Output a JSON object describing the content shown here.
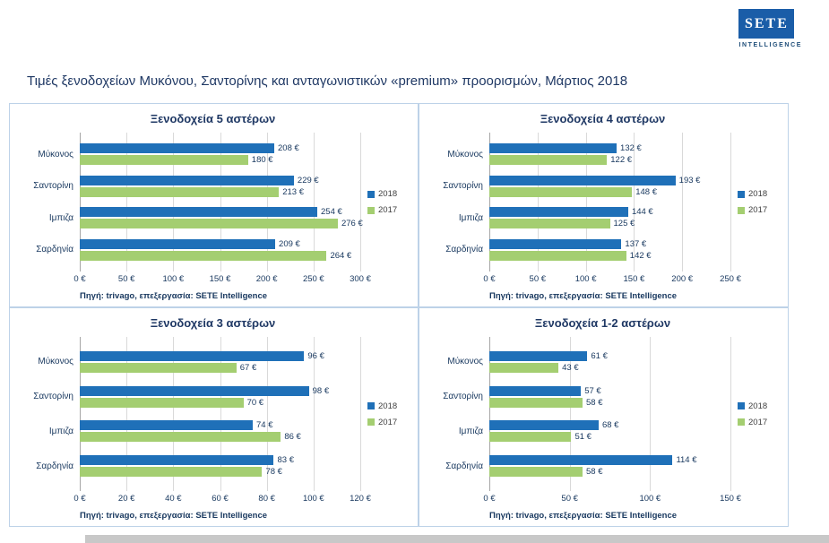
{
  "logo": {
    "text": "SETE",
    "subtext": "INTELLIGENCE"
  },
  "page_title": "Τιμές ξενοδοχείων Μυκόνου, Σαντορίνης και ανταγωνιστικών «premium» προορισμών, Μάρτιος 2018",
  "unit": "€",
  "colors": {
    "series_2018": "#1F70B8",
    "series_2017": "#A4CE71",
    "title_navy": "#1F3864",
    "gridline": "#D9D9D9"
  },
  "chart_data": [
    {
      "type": "bar",
      "orientation": "horizontal",
      "title": "Ξενοδοχεία 5 αστέρων",
      "categories": [
        "Μύκονος",
        "Σαντορίνη",
        "Ιμπιζα",
        "Σαρδηνία"
      ],
      "series": [
        {
          "name": "2018",
          "color": "#1F70B8",
          "values": [
            208,
            229,
            254,
            209
          ]
        },
        {
          "name": "2017",
          "color": "#A4CE71",
          "values": [
            180,
            213,
            276,
            264
          ]
        }
      ],
      "xlim": [
        0,
        300
      ],
      "ticks": [
        0,
        50,
        100,
        150,
        200,
        250,
        300
      ],
      "grid": true,
      "legend_position": "right",
      "source": "Πηγή: trivago, επεξεργασία: SETE Intelligence"
    },
    {
      "type": "bar",
      "orientation": "horizontal",
      "title": "Ξενοδοχεία 4 αστέρων",
      "categories": [
        "Μύκονος",
        "Σαντορίνη",
        "Ιμπιζα",
        "Σαρδηνία"
      ],
      "series": [
        {
          "name": "2018",
          "color": "#1F70B8",
          "values": [
            132,
            193,
            144,
            137
          ]
        },
        {
          "name": "2017",
          "color": "#A4CE71",
          "values": [
            122,
            148,
            125,
            142
          ]
        }
      ],
      "xlim": [
        0,
        250
      ],
      "ticks": [
        0,
        50,
        100,
        150,
        200,
        250
      ],
      "grid": true,
      "legend_position": "right",
      "source": "Πηγή: trivago, επεξεργασία: SETE Intelligence"
    },
    {
      "type": "bar",
      "orientation": "horizontal",
      "title": "Ξενοδοχεία 3 αστέρων",
      "categories": [
        "Μύκονος",
        "Σαντορίνη",
        "Ιμπιζα",
        "Σαρδηνία"
      ],
      "series": [
        {
          "name": "2018",
          "color": "#1F70B8",
          "values": [
            96,
            98,
            74,
            83
          ]
        },
        {
          "name": "2017",
          "color": "#A4CE71",
          "values": [
            67,
            70,
            86,
            78
          ]
        }
      ],
      "xlim": [
        0,
        120
      ],
      "ticks": [
        0,
        20,
        40,
        60,
        80,
        100,
        120
      ],
      "grid": true,
      "legend_position": "right",
      "source": "Πηγή: trivago, επεξεργασία: SETE Intelligence"
    },
    {
      "type": "bar",
      "orientation": "horizontal",
      "title": "Ξενοδοχεία 1-2 αστέρων",
      "categories": [
        "Μύκονος",
        "Σαντορίνη",
        "Ιμπιζα",
        "Σαρδηνία"
      ],
      "series": [
        {
          "name": "2018",
          "color": "#1F70B8",
          "values": [
            61,
            57,
            68,
            114
          ]
        },
        {
          "name": "2017",
          "color": "#A4CE71",
          "values": [
            43,
            58,
            51,
            58
          ]
        }
      ],
      "xlim": [
        0,
        150
      ],
      "ticks": [
        0,
        50,
        100,
        150
      ],
      "grid": true,
      "legend_position": "right",
      "source": "Πηγή: trivago, επεξεργασία: SETE Intelligence"
    }
  ]
}
